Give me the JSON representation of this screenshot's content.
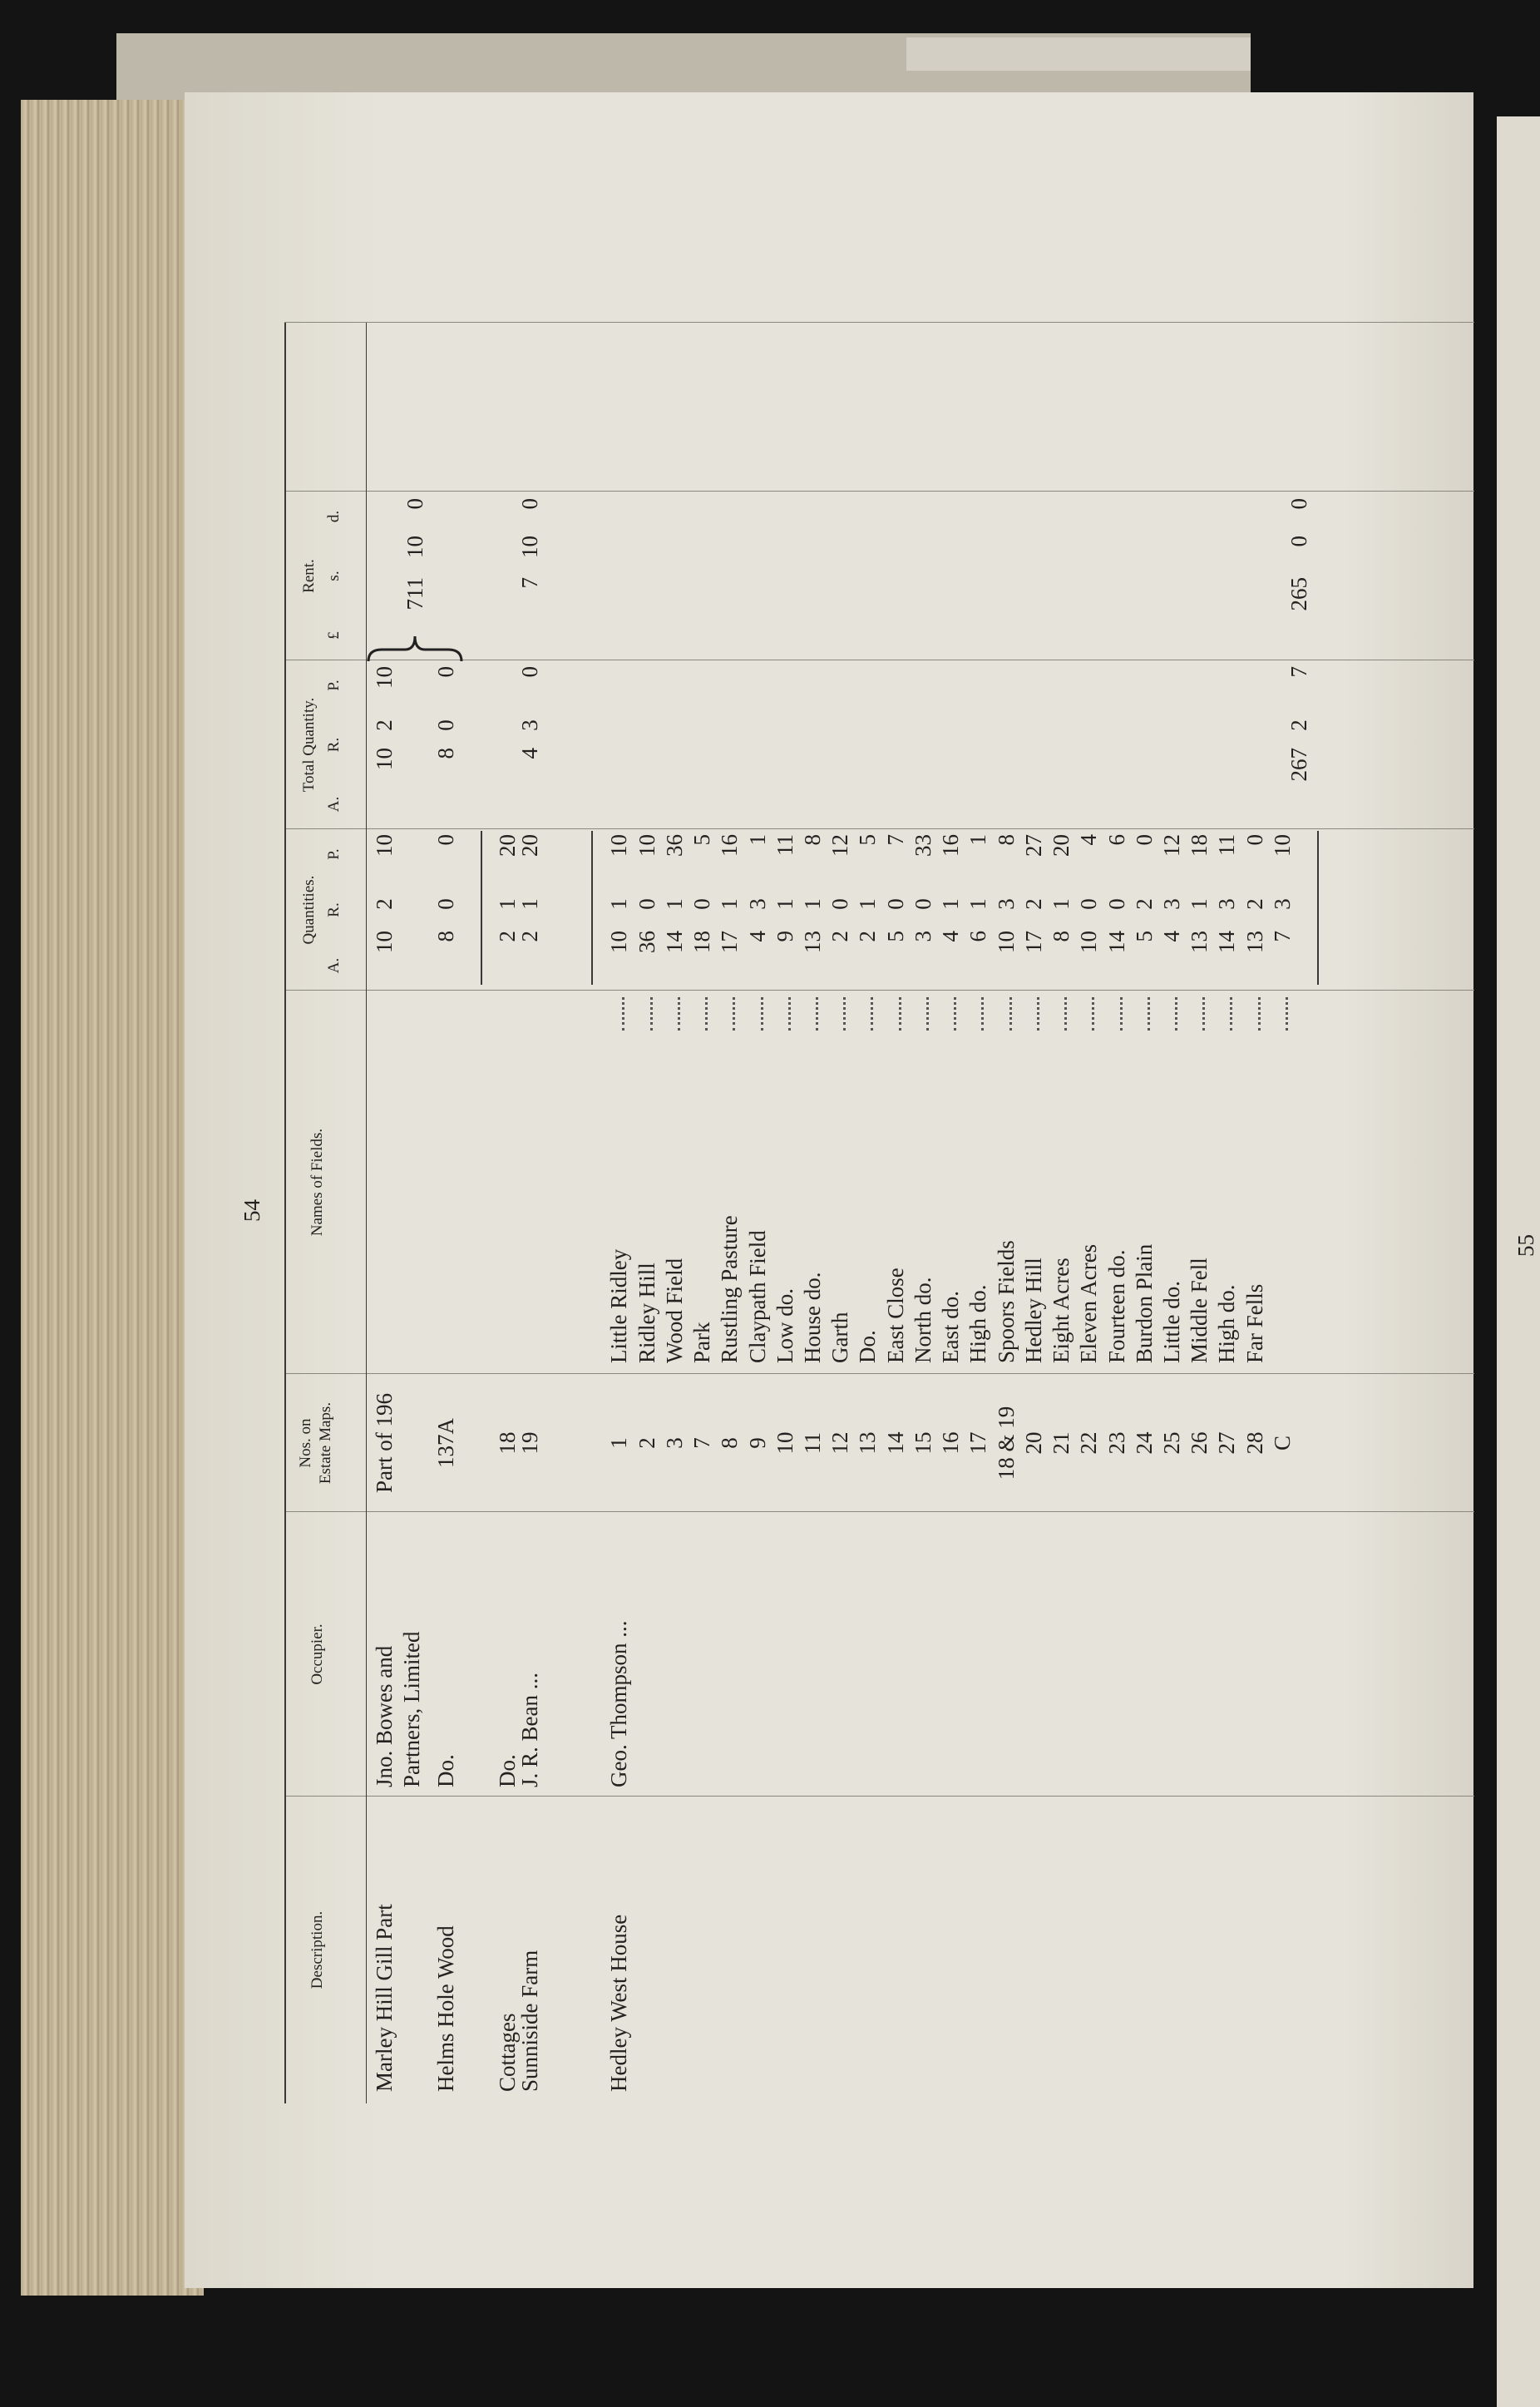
{
  "page": {
    "left_page_number": "54",
    "right_page_number": "55"
  },
  "table": {
    "headers": [
      {
        "label": "Description."
      },
      {
        "label": "Occupier."
      },
      {
        "label": "Nos. on Estate Maps."
      },
      {
        "label": "Names of Fields."
      },
      {
        "label": "Quantities.",
        "units": [
          "A.",
          "R.",
          "P."
        ]
      },
      {
        "label": "Total Quantity.",
        "units": [
          "A.",
          "R.",
          "P."
        ]
      },
      {
        "label": "Rent.",
        "units": [
          "£",
          "s.",
          "d."
        ]
      }
    ],
    "rows": [
      {
        "description": "Marley Hill Gill Part",
        "occupier": [
          "Jno. Bowes and",
          "Partners, Limited"
        ],
        "map_no": "Part of 196",
        "quantity": [
          10,
          2,
          10
        ],
        "total": [
          10,
          2,
          10
        ],
        "rent": [
          711,
          10,
          0
        ]
      },
      {
        "description": "Helms Hole Wood",
        "occupier": [
          "Do."
        ],
        "map_no": "137A",
        "quantity": [
          8,
          0,
          0
        ],
        "total": [
          8,
          0,
          0
        ]
      },
      {
        "description": "Cottages",
        "occupier": [
          "Do."
        ],
        "map_no": "18",
        "quantity": [
          2,
          1,
          20
        ]
      },
      {
        "description": "Sunniside Farm",
        "occupier": [
          "J. R. Bean ..."
        ],
        "map_no": "19",
        "quantity": [
          2,
          1,
          20
        ],
        "total": [
          4,
          3,
          0
        ],
        "rent": [
          7,
          10,
          0
        ]
      },
      {
        "description": "Hedley West House",
        "occupier": [
          "Geo. Thompson ..."
        ],
        "map_no": "1",
        "field": "Little Ridley",
        "quantity": [
          10,
          1,
          10
        ]
      },
      {
        "map_no": "2",
        "field": "Ridley Hill",
        "quantity": [
          36,
          0,
          10
        ]
      },
      {
        "map_no": "3",
        "field": "Wood Field",
        "quantity": [
          14,
          1,
          36
        ]
      },
      {
        "map_no": "7",
        "field": "Park",
        "quantity": [
          18,
          0,
          5
        ]
      },
      {
        "map_no": "8",
        "field": "Rustling Pasture",
        "quantity": [
          17,
          1,
          16
        ]
      },
      {
        "map_no": "9",
        "field": "Claypath Field",
        "quantity": [
          4,
          3,
          1
        ]
      },
      {
        "map_no": "10",
        "field": "Low do.",
        "quantity": [
          9,
          1,
          11
        ]
      },
      {
        "map_no": "11",
        "field": "House do.",
        "quantity": [
          13,
          1,
          8
        ]
      },
      {
        "map_no": "12",
        "field": "Garth",
        "quantity": [
          2,
          0,
          12
        ]
      },
      {
        "map_no": "13",
        "field": "Do.",
        "quantity": [
          2,
          1,
          5
        ]
      },
      {
        "map_no": "14",
        "field": "East Close",
        "quantity": [
          5,
          0,
          7
        ]
      },
      {
        "map_no": "15",
        "field": "North do.",
        "quantity": [
          3,
          0,
          33
        ]
      },
      {
        "map_no": "16",
        "field": "East do.",
        "quantity": [
          4,
          1,
          16
        ]
      },
      {
        "map_no": "17",
        "field": "High do.",
        "quantity": [
          6,
          1,
          1
        ]
      },
      {
        "map_no": "18 & 19",
        "field": "Spoors Fields",
        "quantity": [
          10,
          3,
          8
        ]
      },
      {
        "map_no": "20",
        "field": "Hedley Hill",
        "quantity": [
          17,
          2,
          27
        ]
      },
      {
        "map_no": "21",
        "field": "Eight Acres",
        "quantity": [
          8,
          1,
          20
        ]
      },
      {
        "map_no": "22",
        "field": "Eleven Acres",
        "quantity": [
          10,
          0,
          4
        ]
      },
      {
        "map_no": "23",
        "field": "Fourteen do.",
        "quantity": [
          14,
          0,
          6
        ]
      },
      {
        "map_no": "24",
        "field": "Burdon Plain",
        "quantity": [
          5,
          2,
          0
        ]
      },
      {
        "map_no": "25",
        "field": "Little do.",
        "quantity": [
          4,
          3,
          12
        ]
      },
      {
        "map_no": "26",
        "field": "Middle Fell",
        "quantity": [
          13,
          1,
          18
        ]
      },
      {
        "map_no": "27",
        "field": "High do.",
        "quantity": [
          14,
          3,
          11
        ]
      },
      {
        "map_no": "28",
        "field": "Far Fells",
        "quantity": [
          13,
          2,
          0
        ]
      },
      {
        "map_no": "C",
        "quantity": [
          7,
          3,
          10
        ]
      }
    ],
    "totals": {
      "total": [
        267,
        2,
        7
      ],
      "rent": [
        265,
        0,
        0
      ]
    }
  }
}
